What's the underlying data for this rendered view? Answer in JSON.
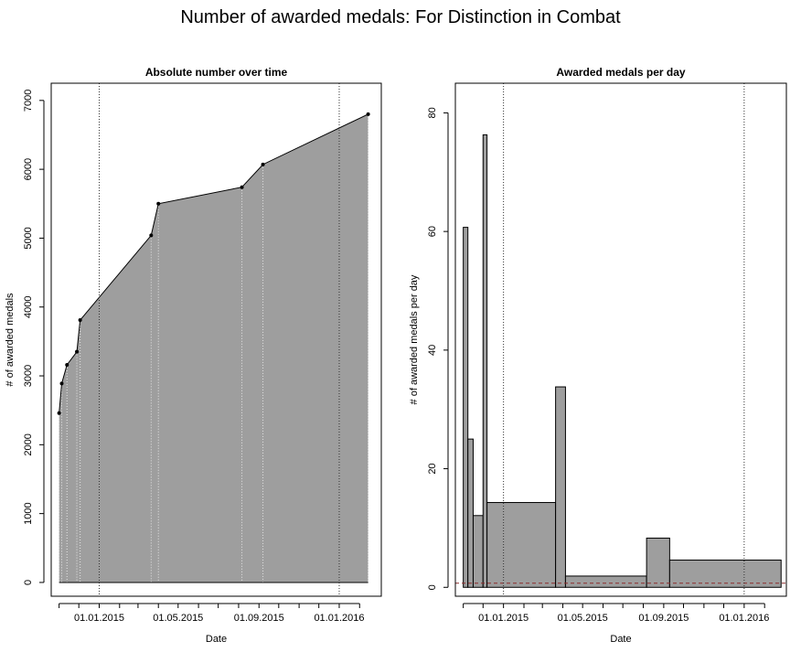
{
  "figure": {
    "title": "Number of awarded medals: For Distinction in Combat"
  },
  "chart_data": [
    {
      "type": "area",
      "title": "Absolute number over time",
      "xlabel": "Date",
      "ylabel": "# of awarded medals",
      "xlim": [
        "2014-10-20",
        "2016-03-05"
      ],
      "ylim": [
        -200,
        7250
      ],
      "x_ticks": [
        "2014-11-01",
        "2014-12-01",
        "2015-01-01",
        "2015-02-01",
        "2015-03-01",
        "2015-04-01",
        "2015-05-01",
        "2015-06-01",
        "2015-07-01",
        "2015-08-01",
        "2015-09-01",
        "2015-10-01",
        "2015-11-01",
        "2015-12-01",
        "2016-01-01",
        "2016-02-01"
      ],
      "x_tick_labels": [
        "01.01.2015",
        "01.05.2015",
        "01.09.2015",
        "01.01.2016"
      ],
      "x_tick_label_dates": [
        "2015-01-01",
        "2015-05-01",
        "2015-09-01",
        "2016-01-01"
      ],
      "y_ticks": [
        0,
        1000,
        2000,
        3000,
        4000,
        5000,
        6000,
        7000
      ],
      "reference_lines": [
        "2015-01-01",
        "2016-01-01"
      ],
      "series": [
        {
          "x": [
            "2014-11-01",
            "2014-11-05",
            "2014-11-13",
            "2014-11-28",
            "2014-12-03",
            "2015-03-21",
            "2015-04-01",
            "2015-08-06",
            "2015-09-07",
            "2016-02-14"
          ],
          "values": [
            2460,
            2890,
            3160,
            3350,
            3810,
            5040,
            5500,
            5740,
            6070,
            6800
          ]
        }
      ],
      "fill_color": "#9e9e9e"
    },
    {
      "type": "bar",
      "title": "Awarded medals per day",
      "xlabel": "Date",
      "ylabel": "# of awarded medals per day",
      "xlim": [
        "2014-10-20",
        "2016-03-05"
      ],
      "ylim": [
        -1.5,
        85
      ],
      "x_ticks": [
        "2014-11-01",
        "2014-12-01",
        "2015-01-01",
        "2015-02-01",
        "2015-03-01",
        "2015-04-01",
        "2015-05-01",
        "2015-06-01",
        "2015-07-01",
        "2015-08-01",
        "2015-09-01",
        "2015-10-01",
        "2015-11-01",
        "2015-12-01",
        "2016-01-01",
        "2016-02-01"
      ],
      "x_tick_labels": [
        "01.01.2015",
        "01.05.2015",
        "01.09.2015",
        "01.01.2016"
      ],
      "x_tick_label_dates": [
        "2015-01-01",
        "2015-05-01",
        "2015-09-01",
        "2016-01-01"
      ],
      "y_ticks": [
        0,
        20,
        40,
        60,
        80
      ],
      "reference_lines": [
        "2015-01-01",
        "2016-01-01"
      ],
      "mean_line": 0.7,
      "mean_line_color": "#8b2d2d",
      "bars": [
        {
          "start": "2014-11-01",
          "end": "2014-11-08",
          "value": 60.7
        },
        {
          "start": "2014-11-08",
          "end": "2014-11-16",
          "value": 25.0
        },
        {
          "start": "2014-11-16",
          "end": "2014-12-01",
          "value": 12.1
        },
        {
          "start": "2014-12-01",
          "end": "2014-12-07",
          "value": 76.3
        },
        {
          "start": "2014-12-07",
          "end": "2015-03-21",
          "value": 14.3
        },
        {
          "start": "2015-03-21",
          "end": "2015-04-05",
          "value": 33.8
        },
        {
          "start": "2015-04-05",
          "end": "2015-08-06",
          "value": 1.9
        },
        {
          "start": "2015-08-06",
          "end": "2015-09-10",
          "value": 8.3
        },
        {
          "start": "2015-09-10",
          "end": "2016-02-26",
          "value": 4.6
        }
      ],
      "fill_color": "#9e9e9e"
    }
  ]
}
